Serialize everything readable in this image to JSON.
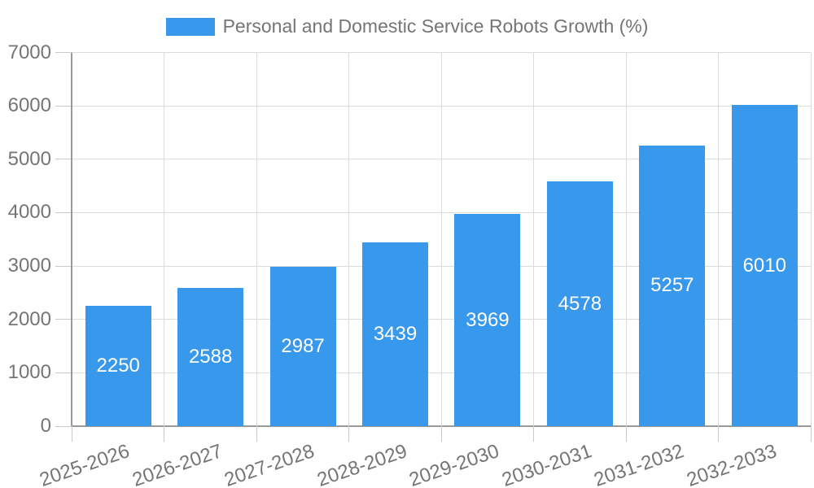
{
  "chart_data": {
    "type": "bar",
    "categories": [
      "2025-2026",
      "2026-2027",
      "2027-2028",
      "2028-2029",
      "2029-2030",
      "2030-2031",
      "2031-2032",
      "2032-2033"
    ],
    "series": [
      {
        "name": "Personal and Domestic Service Robots Growth (%)",
        "values": [
          2250,
          2588,
          2987,
          3439,
          3969,
          4578,
          5257,
          6010
        ]
      }
    ],
    "title": "Personal and Domestic Service Robots Growth (%)",
    "xlabel": "",
    "ylabel": "",
    "ylim": [
      0,
      7000
    ],
    "yticks": [
      0,
      1000,
      2000,
      3000,
      4000,
      5000,
      6000,
      7000
    ],
    "grid": true,
    "legend_position": "top",
    "data_labels": true,
    "x_label_rotation_deg": -19
  },
  "colors": {
    "bar": "#3898EC",
    "grid": "#DCDCDC",
    "tick": "#C9C9C9",
    "axis": "#9A9A9A",
    "text": "#757575",
    "data_label": "#FFFFFF",
    "background": "#FFFFFF"
  }
}
